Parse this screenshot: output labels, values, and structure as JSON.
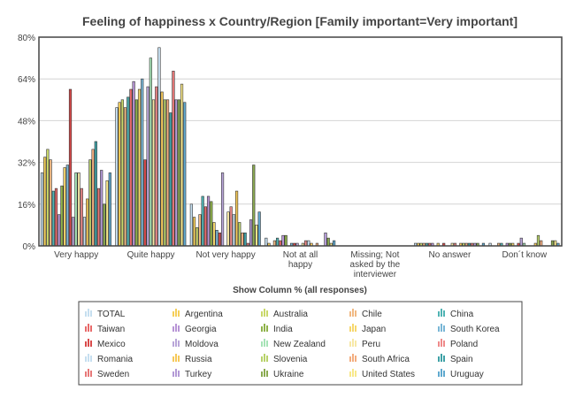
{
  "chart_data": {
    "type": "bar",
    "title": "Feeling of happiness x Country/Region [Family important=Very important]",
    "xlabel": "Show Column % (all responses)",
    "ylabel": "",
    "ylim": [
      0,
      80
    ],
    "yticks": [
      "0%",
      "16%",
      "32%",
      "48%",
      "64%",
      "80%"
    ],
    "grid": true,
    "legend_position": "bottom",
    "categories": [
      [
        "Very happy"
      ],
      [
        "Quite happy"
      ],
      [
        "Not very happy"
      ],
      [
        "Not at all",
        "happy"
      ],
      [
        "Missing; Not",
        "asked by the",
        "interviewer"
      ],
      [
        "No answer"
      ],
      [
        "Don´t know"
      ]
    ],
    "series": [
      {
        "name": "TOTAL",
        "color": "#c6dff0",
        "values": [
          28,
          53,
          16,
          3,
          0,
          1,
          1
        ]
      },
      {
        "name": "Argentina",
        "color": "#f5cf5a",
        "values": [
          34,
          55,
          11,
          1,
          0,
          1,
          0
        ]
      },
      {
        "name": "Australia",
        "color": "#c9d86a",
        "values": [
          37,
          56,
          7,
          0,
          0,
          1,
          0
        ]
      },
      {
        "name": "Chile",
        "color": "#f1b983",
        "values": [
          33,
          53,
          12,
          2,
          0,
          1,
          1
        ]
      },
      {
        "name": "China",
        "color": "#4fb3b3",
        "values": [
          21,
          57,
          19,
          3,
          0,
          1,
          1
        ]
      },
      {
        "name": "Taiwan",
        "color": "#e86a6a",
        "values": [
          22,
          60,
          15,
          2,
          0,
          1,
          0
        ]
      },
      {
        "name": "Georgia",
        "color": "#b895d6",
        "values": [
          12,
          63,
          19,
          4,
          0,
          1,
          1
        ]
      },
      {
        "name": "India",
        "color": "#8fb24a",
        "values": [
          23,
          56,
          17,
          4,
          0,
          0,
          1
        ]
      },
      {
        "name": "Japan",
        "color": "#f6d76c",
        "values": [
          30,
          60,
          9,
          0,
          0,
          1,
          1
        ]
      },
      {
        "name": "South Korea",
        "color": "#79b6d6",
        "values": [
          31,
          64,
          6,
          1,
          0,
          0,
          0
        ]
      },
      {
        "name": "Mexico",
        "color": "#d94a4a",
        "values": [
          60,
          33,
          5,
          1,
          0,
          1,
          1
        ]
      },
      {
        "name": "Moldova",
        "color": "#b9a6d9",
        "values": [
          11,
          61,
          28,
          1,
          0,
          0,
          3
        ]
      },
      {
        "name": "New Zealand",
        "color": "#a6e3b6",
        "values": [
          28,
          72,
          0,
          0,
          0,
          0,
          1
        ]
      },
      {
        "name": "Peru",
        "color": "#f7e8a6",
        "values": [
          28,
          56,
          13,
          1,
          0,
          1,
          0
        ]
      },
      {
        "name": "Poland",
        "color": "#ef8a8a",
        "values": [
          22,
          61,
          15,
          2,
          0,
          1,
          0
        ]
      },
      {
        "name": "Romania",
        "color": "#c6dff0",
        "values": [
          11,
          76,
          12,
          2,
          0,
          0,
          0
        ]
      },
      {
        "name": "Russia",
        "color": "#f6c95a",
        "values": [
          18,
          59,
          21,
          1,
          0,
          1,
          1
        ]
      },
      {
        "name": "Slovenia",
        "color": "#b8d26a",
        "values": [
          33,
          56,
          9,
          0,
          0,
          1,
          4
        ]
      },
      {
        "name": "South Africa",
        "color": "#f3ad7f",
        "values": [
          37,
          56,
          5,
          1,
          0,
          1,
          2
        ]
      },
      {
        "name": "Spain",
        "color": "#3ea1a6",
        "values": [
          40,
          51,
          5,
          0,
          0,
          1,
          0
        ]
      },
      {
        "name": "Sweden",
        "color": "#e77878",
        "values": [
          22,
          67,
          1,
          0,
          0,
          1,
          0
        ]
      },
      {
        "name": "Turkey",
        "color": "#b39ad6",
        "values": [
          29,
          56,
          10,
          5,
          0,
          1,
          0
        ]
      },
      {
        "name": "Ukraine",
        "color": "#8aaa50",
        "values": [
          16,
          56,
          31,
          3,
          0,
          1,
          2
        ]
      },
      {
        "name": "United States",
        "color": "#f8e88a",
        "values": [
          25,
          62,
          8,
          1,
          0,
          0,
          2
        ]
      },
      {
        "name": "Uruguay",
        "color": "#5fa9cf",
        "values": [
          28,
          55,
          13,
          2,
          0,
          1,
          1
        ]
      }
    ]
  }
}
